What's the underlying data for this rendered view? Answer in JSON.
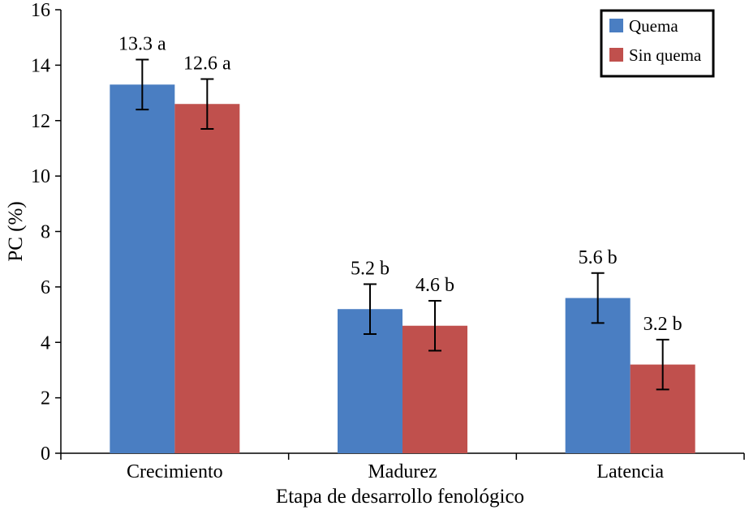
{
  "chart_data": {
    "type": "bar",
    "title": "",
    "xlabel": "Etapa de desarrollo fenológico",
    "ylabel": "PC (%)",
    "ylim": [
      0,
      16
    ],
    "yticks": [
      0,
      2,
      4,
      6,
      8,
      10,
      12,
      14,
      16
    ],
    "categories": [
      "Crecimiento",
      "Madurez",
      "Latencia"
    ],
    "series": [
      {
        "name": "Quema",
        "color": "#4a7ec2",
        "values": [
          13.3,
          5.2,
          5.6
        ],
        "errors": [
          0.9,
          0.9,
          0.9
        ],
        "labels": [
          "13.3 a",
          "5.2 b",
          "5.6 b"
        ]
      },
      {
        "name": "Sin quema",
        "color": "#c0504d",
        "values": [
          12.6,
          4.6,
          3.2
        ],
        "errors": [
          0.9,
          0.9,
          0.9
        ],
        "labels": [
          "12.6 a",
          "4.6 b",
          "3.2 b"
        ]
      }
    ],
    "legend_position": "top-right",
    "grid": false
  }
}
